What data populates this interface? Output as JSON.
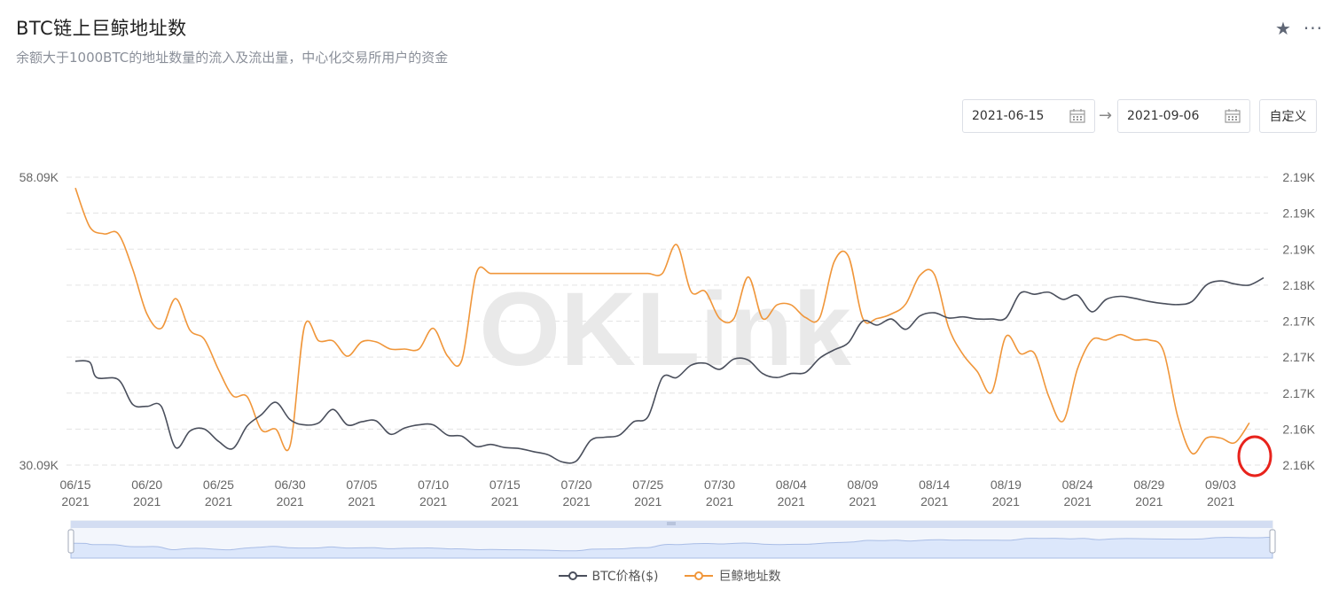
{
  "header": {
    "title": "BTC链上巨鲸地址数",
    "subtitle": "余额大于1000BTC的地址数量的流入及流出量，中心化交易所用户的资金"
  },
  "controls": {
    "date_start": "2021-06-15",
    "date_end": "2021-09-06",
    "custom_label": "自定义"
  },
  "watermark": "OKLink",
  "colors": {
    "price": "#4a4f5c",
    "whales": "#f0963a",
    "grid": "#e3e3e3",
    "slider_fill": "#dce7fb",
    "highlight": "#e8231c"
  },
  "chart_data": {
    "type": "line",
    "x_ticks": [
      {
        "date": "06/15",
        "year": "2021",
        "day": 0
      },
      {
        "date": "06/20",
        "year": "2021",
        "day": 5
      },
      {
        "date": "06/25",
        "year": "2021",
        "day": 10
      },
      {
        "date": "06/30",
        "year": "2021",
        "day": 15
      },
      {
        "date": "07/05",
        "year": "2021",
        "day": 20
      },
      {
        "date": "07/10",
        "year": "2021",
        "day": 25
      },
      {
        "date": "07/15",
        "year": "2021",
        "day": 30
      },
      {
        "date": "07/20",
        "year": "2021",
        "day": 35
      },
      {
        "date": "07/25",
        "year": "2021",
        "day": 40
      },
      {
        "date": "07/30",
        "year": "2021",
        "day": 45
      },
      {
        "date": "08/04",
        "year": "2021",
        "day": 50
      },
      {
        "date": "08/09",
        "year": "2021",
        "day": 55
      },
      {
        "date": "08/14",
        "year": "2021",
        "day": 60
      },
      {
        "date": "08/19",
        "year": "2021",
        "day": 65
      },
      {
        "date": "08/24",
        "year": "2021",
        "day": 70
      },
      {
        "date": "08/29",
        "year": "2021",
        "day": 75
      },
      {
        "date": "09/03",
        "year": "2021",
        "day": 80
      }
    ],
    "y_left": {
      "ticks": [
        "58.09K",
        "30.09K"
      ],
      "range": [
        30090,
        58090
      ]
    },
    "y_right": {
      "ticks": [
        "2.19K",
        "2.19K",
        "2.19K",
        "2.18K",
        "2.17K",
        "2.17K",
        "2.17K",
        "2.16K",
        "2.16K"
      ],
      "range": [
        2160,
        2192
      ]
    },
    "series": [
      {
        "name": "BTC价格($)",
        "axis": "left",
        "points": [
          [
            0,
            40200
          ],
          [
            1,
            40100
          ],
          [
            1.5,
            38600
          ],
          [
            3,
            38400
          ],
          [
            4,
            36000
          ],
          [
            5,
            35800
          ],
          [
            6,
            35800
          ],
          [
            7,
            31800
          ],
          [
            8,
            33400
          ],
          [
            9,
            33600
          ],
          [
            10,
            32400
          ],
          [
            11,
            31700
          ],
          [
            12,
            33900
          ],
          [
            13,
            35000
          ],
          [
            14,
            36200
          ],
          [
            15,
            34500
          ],
          [
            16,
            34000
          ],
          [
            17,
            34200
          ],
          [
            18,
            35500
          ],
          [
            19,
            34000
          ],
          [
            20,
            34300
          ],
          [
            21,
            34400
          ],
          [
            22,
            33100
          ],
          [
            23,
            33700
          ],
          [
            24,
            34000
          ],
          [
            25,
            34000
          ],
          [
            26,
            33000
          ],
          [
            27,
            32900
          ],
          [
            28,
            31900
          ],
          [
            29,
            32100
          ],
          [
            30,
            31800
          ],
          [
            31,
            31700
          ],
          [
            32,
            31400
          ],
          [
            33,
            31100
          ],
          [
            34,
            30400
          ],
          [
            35,
            30500
          ],
          [
            36,
            32500
          ],
          [
            37,
            32800
          ],
          [
            38,
            33000
          ],
          [
            39,
            34300
          ],
          [
            40,
            34800
          ],
          [
            41,
            38600
          ],
          [
            42,
            38600
          ],
          [
            43,
            39800
          ],
          [
            44,
            40000
          ],
          [
            45,
            39400
          ],
          [
            46,
            40400
          ],
          [
            47,
            40300
          ],
          [
            48,
            39000
          ],
          [
            49,
            38600
          ],
          [
            50,
            39000
          ],
          [
            51,
            39100
          ],
          [
            52,
            40500
          ],
          [
            53,
            41300
          ],
          [
            54,
            42000
          ],
          [
            55,
            44100
          ],
          [
            56,
            43700
          ],
          [
            57,
            44300
          ],
          [
            58,
            43300
          ],
          [
            59,
            44600
          ],
          [
            60,
            44900
          ],
          [
            61,
            44400
          ],
          [
            62,
            44500
          ],
          [
            63,
            44300
          ],
          [
            64,
            44300
          ],
          [
            65,
            44400
          ],
          [
            66,
            46800
          ],
          [
            67,
            46700
          ],
          [
            68,
            46900
          ],
          [
            69,
            46200
          ],
          [
            70,
            46600
          ],
          [
            71,
            45000
          ],
          [
            72,
            46200
          ],
          [
            73,
            46500
          ],
          [
            74,
            46300
          ],
          [
            75,
            46000
          ],
          [
            76,
            45800
          ],
          [
            77,
            45700
          ],
          [
            78,
            46000
          ],
          [
            79,
            47600
          ],
          [
            80,
            48000
          ],
          [
            81,
            47700
          ],
          [
            82,
            47600
          ],
          [
            83,
            48300
          ]
        ]
      },
      {
        "name": "巨鲸地址数",
        "axis": "right",
        "points": [
          [
            0,
            2190.8
          ],
          [
            1,
            2186.5
          ],
          [
            2,
            2185.7
          ],
          [
            3,
            2185.7
          ],
          [
            4,
            2181.8
          ],
          [
            5,
            2176.8
          ],
          [
            6,
            2175.2
          ],
          [
            7,
            2178.5
          ],
          [
            8,
            2175.0
          ],
          [
            9,
            2174.0
          ],
          [
            10,
            2170.6
          ],
          [
            11,
            2167.7
          ],
          [
            12,
            2167.6
          ],
          [
            13,
            2163.9
          ],
          [
            14,
            2164.0
          ],
          [
            15,
            2162.2
          ],
          [
            16,
            2175.4
          ],
          [
            17,
            2173.8
          ],
          [
            18,
            2173.8
          ],
          [
            19,
            2172.1
          ],
          [
            20,
            2173.7
          ],
          [
            21,
            2173.7
          ],
          [
            22,
            2172.9
          ],
          [
            23,
            2172.9
          ],
          [
            24,
            2172.9
          ],
          [
            25,
            2175.2
          ],
          [
            26,
            2172.1
          ],
          [
            27,
            2171.7
          ],
          [
            28,
            2181.3
          ],
          [
            29,
            2181.3
          ],
          [
            30,
            2181.3
          ],
          [
            31,
            2181.3
          ],
          [
            32,
            2181.3
          ],
          [
            33,
            2181.3
          ],
          [
            34,
            2181.3
          ],
          [
            35,
            2181.3
          ],
          [
            36,
            2181.3
          ],
          [
            37,
            2181.3
          ],
          [
            38,
            2181.3
          ],
          [
            39,
            2181.3
          ],
          [
            40,
            2181.3
          ],
          [
            41,
            2181.3
          ],
          [
            42,
            2184.5
          ],
          [
            43,
            2179.3
          ],
          [
            44,
            2179.3
          ],
          [
            45,
            2176.3
          ],
          [
            46,
            2176.3
          ],
          [
            47,
            2180.9
          ],
          [
            48,
            2176.3
          ],
          [
            49,
            2177.8
          ],
          [
            50,
            2177.8
          ],
          [
            51,
            2176.4
          ],
          [
            52,
            2176.4
          ],
          [
            53,
            2182.6
          ],
          [
            54,
            2183.2
          ],
          [
            55,
            2176.3
          ],
          [
            56,
            2176.3
          ],
          [
            57,
            2176.8
          ],
          [
            58,
            2177.9
          ],
          [
            59,
            2181.1
          ],
          [
            60,
            2181.2
          ],
          [
            61,
            2175.3
          ],
          [
            62,
            2172.3
          ],
          [
            63,
            2170.4
          ],
          [
            64,
            2168.1
          ],
          [
            65,
            2174.3
          ],
          [
            66,
            2172.4
          ],
          [
            67,
            2172.4
          ],
          [
            68,
            2167.6
          ],
          [
            69,
            2164.9
          ],
          [
            70,
            2170.7
          ],
          [
            71,
            2173.9
          ],
          [
            72,
            2173.9
          ],
          [
            73,
            2174.5
          ],
          [
            74,
            2173.9
          ],
          [
            75,
            2173.9
          ],
          [
            76,
            2172.7
          ],
          [
            77,
            2165.4
          ],
          [
            78,
            2161.3
          ],
          [
            79,
            2163.0
          ],
          [
            80,
            2163.0
          ],
          [
            81,
            2162.5
          ],
          [
            82,
            2164.7
          ]
        ]
      }
    ],
    "legend": [
      "BTC价格($)",
      "巨鲸地址数"
    ]
  }
}
